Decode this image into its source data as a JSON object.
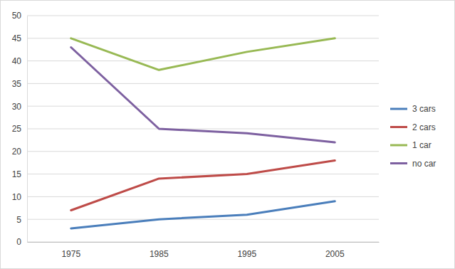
{
  "chart_data": {
    "type": "line",
    "categories": [
      "1975",
      "1985",
      "1995",
      "2005"
    ],
    "series": [
      {
        "name": "3 cars",
        "color": "#4a7ebb",
        "values": [
          3,
          5,
          6,
          9
        ]
      },
      {
        "name": "2 cars",
        "color": "#be4b48",
        "values": [
          7,
          14,
          15,
          18
        ]
      },
      {
        "name": "1 car",
        "color": "#98b954",
        "values": [
          45,
          38,
          42,
          45
        ]
      },
      {
        "name": "no car",
        "color": "#7d60a0",
        "values": [
          43,
          25,
          24,
          22
        ]
      }
    ],
    "ylim": [
      0,
      50
    ],
    "yticks": [
      0,
      5,
      10,
      15,
      20,
      25,
      30,
      35,
      40,
      45,
      50
    ],
    "grid": true,
    "legend": "right"
  }
}
